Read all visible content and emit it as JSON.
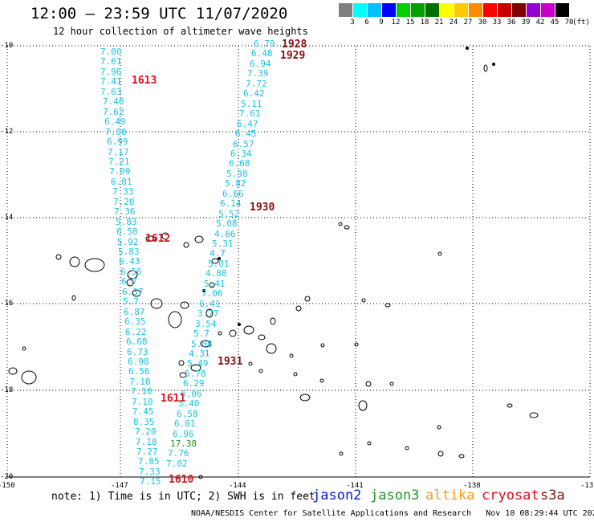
{
  "header": {
    "title": "12:00 – 23:59 UTC 11/07/2020",
    "subtitle": "12 hour collection of altimeter wave heights"
  },
  "legend": {
    "unit": "(ft)",
    "bins": [
      {
        "label": "3",
        "color": "#808080"
      },
      {
        "label": "6",
        "color": "#00ffff"
      },
      {
        "label": "9",
        "color": "#00bfff"
      },
      {
        "label": "12",
        "color": "#0000ff"
      },
      {
        "label": "15",
        "color": "#00d000"
      },
      {
        "label": "18",
        "color": "#00a000"
      },
      {
        "label": "21",
        "color": "#007000"
      },
      {
        "label": "24",
        "color": "#ffff00"
      },
      {
        "label": "27",
        "color": "#ffc800"
      },
      {
        "label": "30",
        "color": "#ff8c00"
      },
      {
        "label": "33",
        "color": "#ff0000"
      },
      {
        "label": "36",
        "color": "#c80000"
      },
      {
        "label": "39",
        "color": "#800000"
      },
      {
        "label": "42",
        "color": "#9400d3"
      },
      {
        "label": "45",
        "color": "#c800c8"
      },
      {
        "label": "70",
        "color": "#000000"
      }
    ]
  },
  "axes": {
    "lat_labels": [
      "-10",
      "-12",
      "-14",
      "-16",
      "-18",
      "-20"
    ],
    "lon_labels": [
      "-150",
      "-147",
      "-144",
      "-141",
      "-138",
      "-13"
    ]
  },
  "colors": {
    "value_text": "#19c2e6",
    "pass_red": "#e0101c",
    "pass_dark": "#801010",
    "jason2": "#0a1ad8",
    "jason3": "#1c9a1c",
    "altika": "#ff9a1c",
    "cryosat": "#e0101c",
    "s3a": "#801010"
  },
  "passes": [
    {
      "label": "1613",
      "color": "#e0101c"
    },
    {
      "label": "1612",
      "color": "#e0101c"
    },
    {
      "label": "1611",
      "color": "#e0101c"
    },
    {
      "label": "1610",
      "color": "#e0101c"
    },
    {
      "label": "1928",
      "color": "#801010"
    },
    {
      "label": "1929",
      "color": "#801010"
    },
    {
      "label": "1930",
      "color": "#801010"
    },
    {
      "label": "1931",
      "color": "#801010"
    }
  ],
  "track_a": [
    "7.00",
    "7.61",
    "7.96",
    "7.41",
    "7.63",
    "7.46",
    "7.62",
    "6.49",
    "7.00",
    "6.99",
    "7.17",
    "7.21",
    "7.09",
    "6.81",
    "7.33",
    "7.20",
    "7.36",
    "5.83",
    "6.58",
    "5.92",
    "5.83",
    "6.43",
    "6.56",
    "6.7",
    "6.37",
    "5.7",
    "6.87",
    "6.35",
    "6.22",
    "6.68",
    "6.73",
    "6.98",
    "6.56",
    "7.18",
    "7.10",
    "7.10",
    "7.45",
    "8.35",
    "7.20",
    "7.18",
    "7.27",
    "7.85",
    "7.33",
    "7.15"
  ],
  "track_b": [
    "6.79",
    "6.48",
    "6.94",
    "7.39",
    "7.72",
    "6.42",
    "5.11",
    "7.61",
    "6.47",
    "6.45",
    "6.57",
    "6.34",
    "6.68",
    "5.38",
    "5.82",
    "6.66",
    "6.14",
    "5.52",
    "5.08",
    "4.66",
    "5.31",
    "4.7",
    "5.01",
    "4.88",
    "5.41",
    "7.06",
    "6.41",
    "3.77",
    "3.54",
    "5.7",
    "5.08",
    "4.31",
    "5.49",
    "5.78",
    "6.29",
    "6.06",
    "5.40",
    "6.58",
    "6.01",
    "6.96",
    "17.38",
    "7.76",
    "7.02"
  ],
  "track_b_green_index": 40,
  "footer": {
    "note": "note: 1) Time is in UTC; 2) SWH is in feet",
    "satellites": [
      "jason2",
      "jason3",
      "altika",
      "cryosat",
      "s3a"
    ],
    "credit": "NOAA/NESDIS Center for Satellite Applications and Research   Nov 10 08:29:44 UTC 2020"
  }
}
